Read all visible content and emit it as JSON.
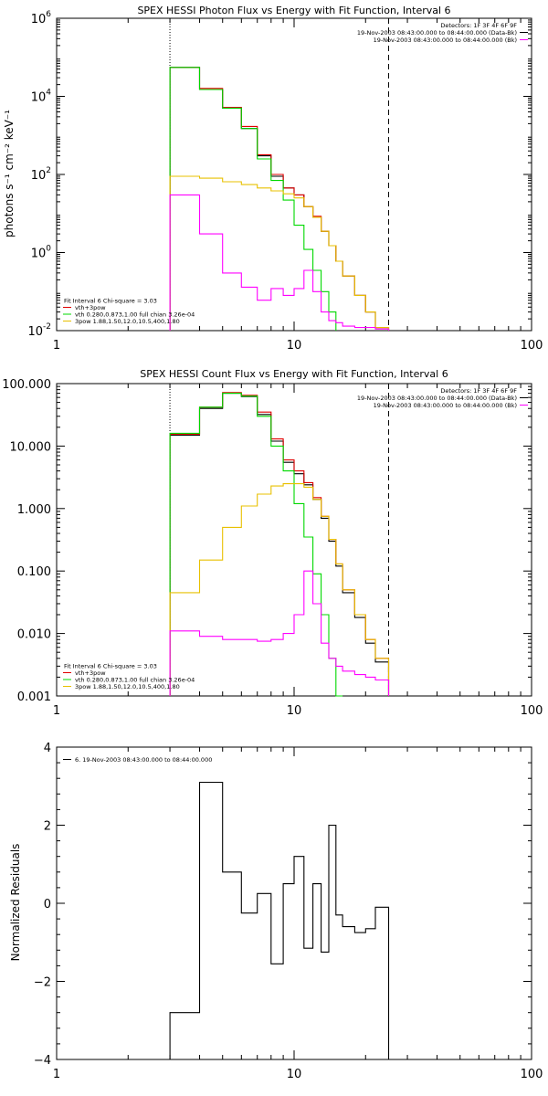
{
  "colors": {
    "axes": "#000000",
    "data": "#000000",
    "total": "#e00000",
    "thermal": "#00d800",
    "powerlaw": "#e8c000",
    "background": "#ff00ff"
  },
  "chart_data": [
    {
      "type": "line",
      "title": "SPEX HESSI Photon Flux vs Energy with Fit Function, Interval 6",
      "xlabel": "",
      "ylabel": "photons s⁻¹ cm⁻² keV⁻¹",
      "xscale": "log",
      "yscale": "log",
      "xlim": [
        1,
        100
      ],
      "ylim": [
        0.01,
        1000000
      ],
      "x_ticks": [
        1,
        10,
        100
      ],
      "x_tick_labels": [
        "1",
        "10",
        "100"
      ],
      "y_ticks": [
        0.01,
        1,
        100,
        10000,
        1000000
      ],
      "y_tick_labels": [
        {
          "base": "10",
          "exp": "-2"
        },
        {
          "base": "10",
          "exp": "0"
        },
        {
          "base": "10",
          "exp": "2"
        },
        {
          "base": "10",
          "exp": "4"
        },
        {
          "base": "10",
          "exp": "6"
        }
      ],
      "vlines": [
        {
          "x": 3,
          "style": "dotted"
        },
        {
          "x": 25,
          "style": "dashed"
        }
      ],
      "info_lines": [
        "Detectors: 1F 3F 4F 6F 9F",
        "19-Nov-2003 08:43:00.000 to 08:44:00.000 (Data-Bk)",
        "19-Nov-2003 08:43:00.000 to 08:44:00.000 (Bk)"
      ],
      "info_colors": [
        "",
        "data",
        "background"
      ],
      "legend": [
        {
          "text": "Fit Interval 6   Chi-square = 3.03",
          "color": ""
        },
        {
          "text": "vth+3pow",
          "color": "total"
        },
        {
          "text": "vth 0.280,0.873,1.00  full chian 3.26e-04",
          "color": "thermal"
        },
        {
          "text": "3pow 1.88,1.50,12.0,10.5,400,1.80",
          "color": "powerlaw"
        }
      ],
      "edges": [
        3,
        4,
        5,
        6,
        7,
        8,
        9,
        10,
        11,
        12,
        13,
        14,
        15,
        16,
        18,
        20,
        22,
        25
      ],
      "series": [
        {
          "color": "data",
          "values": [
            55000,
            15000,
            5000,
            1500,
            300,
            90,
            45,
            30,
            15,
            8,
            3.5,
            1.5,
            0.6,
            0.25,
            0.08,
            0.03,
            0.012
          ]
        },
        {
          "color": "total",
          "values": [
            55000,
            16000,
            5200,
            1700,
            320,
            100,
            45,
            30,
            15,
            8.5,
            3.5,
            1.5,
            0.6,
            0.25,
            0.08,
            0.03,
            0.012
          ]
        },
        {
          "color": "thermal",
          "values": [
            55000,
            15000,
            5000,
            1500,
            250,
            70,
            22,
            5,
            1.2,
            0.35,
            0.1,
            0.03
          ]
        },
        {
          "color": "powerlaw",
          "values": [
            90,
            80,
            65,
            55,
            45,
            38,
            32,
            25,
            15,
            8,
            3.5,
            1.5,
            0.6,
            0.25,
            0.08,
            0.03,
            0.012
          ]
        },
        {
          "color": "background",
          "values": [
            30,
            3,
            0.3,
            0.13,
            0.06,
            0.12,
            0.08,
            0.12,
            0.35,
            0.1,
            0.03,
            0.018,
            0.016,
            0.013,
            0.012,
            0.012,
            0.011
          ]
        }
      ]
    },
    {
      "type": "line",
      "title": "SPEX HESSI Count Flux vs Energy with Fit Function, Interval 6",
      "xlabel": "",
      "ylabel": "",
      "xscale": "log",
      "yscale": "log",
      "xlim": [
        1,
        100
      ],
      "ylim": [
        0.001,
        100
      ],
      "x_ticks": [
        1,
        10,
        100
      ],
      "x_tick_labels": [
        "1",
        "10",
        "100"
      ],
      "y_ticks": [
        0.001,
        0.01,
        0.1,
        1,
        10,
        100
      ],
      "y_tick_labels": [
        {
          "base": "0.001",
          "exp": ""
        },
        {
          "base": "0.010",
          "exp": ""
        },
        {
          "base": "0.100",
          "exp": ""
        },
        {
          "base": "1.000",
          "exp": ""
        },
        {
          "base": "10.000",
          "exp": ""
        },
        {
          "base": "100.000",
          "exp": ""
        }
      ],
      "vlines": [
        {
          "x": 3,
          "style": "dotted"
        },
        {
          "x": 25,
          "style": "dashed"
        }
      ],
      "info_lines": [
        "Detectors: 1F 3F 4F 6F 9F",
        "19-Nov-2003 08:43:00.000 to 08:44:00.000 (Data-Bk)",
        "19-Nov-2003 08:43:00.000 to 08:44:00.000 (Bk)"
      ],
      "info_colors": [
        "",
        "data",
        "background"
      ],
      "legend": [
        {
          "text": "Fit Interval 6   Chi-square = 3.03",
          "color": ""
        },
        {
          "text": "vth+3pow",
          "color": "total"
        },
        {
          "text": "vth 0.280,0.873,1.00  full chian 3.26e-04",
          "color": "thermal"
        },
        {
          "text": "3pow 1.88,1.50,12.0,10.5,400,1.80",
          "color": "powerlaw"
        }
      ],
      "edges": [
        3,
        4,
        5,
        6,
        7,
        8,
        9,
        10,
        11,
        12,
        13,
        14,
        15,
        16,
        18,
        20,
        22,
        25
      ],
      "series": [
        {
          "color": "data",
          "values": [
            15,
            40,
            70,
            62,
            32,
            12,
            5.5,
            3.6,
            2.4,
            1.4,
            0.7,
            0.3,
            0.12,
            0.045,
            0.018,
            0.007,
            0.0035
          ]
        },
        {
          "color": "total",
          "values": [
            15.5,
            42,
            72,
            65,
            35,
            13,
            6,
            4,
            2.6,
            1.5,
            0.75,
            0.32,
            0.13,
            0.05,
            0.02,
            0.008,
            0.004
          ]
        },
        {
          "color": "thermal",
          "values": [
            16,
            42,
            70,
            63,
            30,
            10,
            4,
            1.2,
            0.35,
            0.09,
            0.02,
            0.004,
            0.0009
          ]
        },
        {
          "color": "powerlaw",
          "values": [
            0.045,
            0.15,
            0.5,
            1.1,
            1.7,
            2.3,
            2.5,
            2.5,
            2.2,
            1.4,
            0.75,
            0.32,
            0.13,
            0.05,
            0.02,
            0.008,
            0.004
          ]
        },
        {
          "color": "background",
          "values": [
            0.011,
            0.009,
            0.008,
            0.008,
            0.0075,
            0.008,
            0.01,
            0.02,
            0.1,
            0.03,
            0.007,
            0.004,
            0.003,
            0.0025,
            0.0022,
            0.002,
            0.0018
          ]
        }
      ]
    },
    {
      "type": "line",
      "title": "",
      "xlabel": "",
      "ylabel": "Normalized Residuals",
      "xscale": "log",
      "yscale": "linear",
      "xlim": [
        1,
        100
      ],
      "ylim": [
        -4,
        4
      ],
      "x_ticks": [
        1,
        10,
        100
      ],
      "x_tick_labels": [
        "1",
        "10",
        "100"
      ],
      "y_ticks": [
        -4,
        -2,
        0,
        2,
        4
      ],
      "y_tick_labels": [
        {
          "base": "−4",
          "exp": ""
        },
        {
          "base": "−2",
          "exp": ""
        },
        {
          "base": "0",
          "exp": ""
        },
        {
          "base": "2",
          "exp": ""
        },
        {
          "base": "4",
          "exp": ""
        }
      ],
      "vlines": [],
      "info_lines": [],
      "info_colors": [],
      "legend": [
        {
          "text": "6. 19-Nov-2003 08:43:00.000 to 08:44:00.000",
          "color": "data"
        }
      ],
      "edges": [
        3,
        4,
        5,
        6,
        7,
        8,
        9,
        10,
        11,
        12,
        13,
        14,
        15,
        16,
        18,
        20,
        22,
        25
      ],
      "series": [
        {
          "color": "data",
          "values": [
            -2.8,
            3.1,
            0.8,
            -0.25,
            0.25,
            -1.55,
            0.5,
            1.2,
            -1.15,
            0.5,
            -1.25,
            2.0,
            -0.3,
            -0.6,
            -0.75,
            -0.65,
            -0.1
          ]
        }
      ]
    }
  ]
}
